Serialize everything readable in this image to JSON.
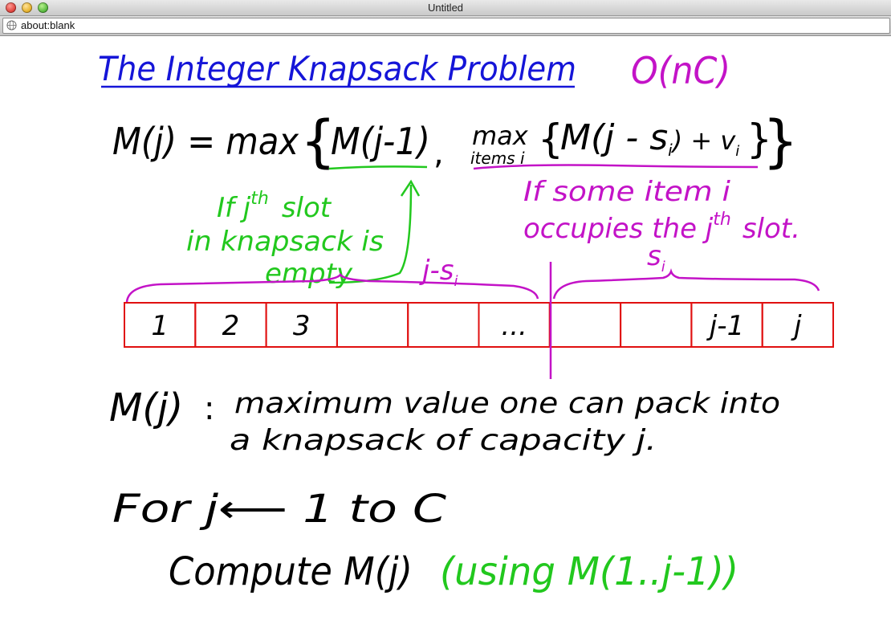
{
  "window": {
    "title": "Untitled",
    "url": "about:blank"
  },
  "whiteboard": {
    "title": "The Integer Knapsack Problem",
    "complexity": "O(nC)",
    "recurrence": {
      "lhs": "M(j) = max",
      "term1": "M(j-1)",
      "comma": ",",
      "inner_max": "max",
      "subscript": "items i",
      "term2": "M(j - s",
      "term2_sub": "i",
      "term2_tail": ") + v",
      "term2_tail_sub": "i"
    },
    "green_note": {
      "line1_a": "If j",
      "line1_sup": "th",
      "line1_b": "slot",
      "line2": "in knapsack is",
      "line3": "empty"
    },
    "magenta_note": {
      "line1": "If some item i",
      "line2_a": "occupies the j",
      "line2_sup": "th",
      "line2_b": "slot."
    },
    "brace_left_label": "j-s",
    "brace_left_label_sub": "i",
    "brace_right_label": "s",
    "brace_right_label_sub": "i",
    "slots": [
      "1",
      "2",
      "3",
      "",
      "",
      "...",
      "",
      "",
      "j-1",
      "j"
    ],
    "definition": {
      "symbol": "M(j)",
      "colon": ":",
      "line1": "maximum value one can pack into",
      "line2": "a knapsack of capacity j."
    },
    "loop": {
      "line1": "For j⟵ 1  to  C",
      "line2_a": "Compute  M(j)",
      "line2_b": "(using  M(1..j-1))"
    },
    "colors": {
      "title": "#1515d8",
      "red_boxes": "#e01010",
      "green": "#22c81e",
      "magenta": "#c313c7"
    }
  }
}
